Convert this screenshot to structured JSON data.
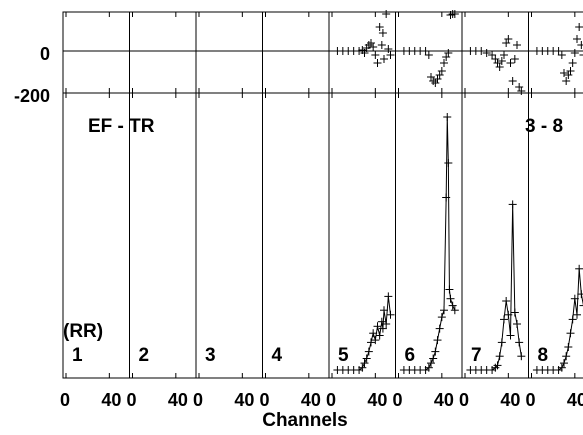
{
  "chart_data": {
    "type": "scatter",
    "labels": {
      "title_left": "EF - TR",
      "title_right": "3 - 8",
      "polarization": "(RR)",
      "xlabel": "Channels"
    },
    "phase_axis": {
      "ticks": [
        "0",
        "-200"
      ]
    },
    "x_ticks": [
      "0",
      "40"
    ],
    "panels": [
      {
        "id": "1",
        "phase": [],
        "amp": []
      },
      {
        "id": "2",
        "phase": [],
        "amp": []
      },
      {
        "id": "3",
        "phase": [],
        "amp": []
      },
      {
        "id": "4",
        "phase": [],
        "amp": []
      },
      {
        "id": "5",
        "phase": [
          [
            5,
            0
          ],
          [
            10,
            0
          ],
          [
            15,
            0
          ],
          [
            20,
            0
          ],
          [
            25,
            0
          ],
          [
            28,
            5
          ],
          [
            30,
            -10
          ],
          [
            32,
            15
          ],
          [
            34,
            30
          ],
          [
            36,
            40
          ],
          [
            38,
            20
          ],
          [
            40,
            -20
          ],
          [
            42,
            -60
          ],
          [
            44,
            120
          ],
          [
            46,
            30
          ],
          [
            47,
            90
          ],
          [
            48,
            -40
          ],
          [
            50,
            200
          ],
          [
            52,
            10
          ],
          [
            54,
            -20
          ]
        ],
        "amp": [
          [
            5,
            0
          ],
          [
            10,
            0
          ],
          [
            15,
            0
          ],
          [
            20,
            0
          ],
          [
            25,
            0
          ],
          [
            28,
            0.1
          ],
          [
            30,
            0.3
          ],
          [
            32,
            0.5
          ],
          [
            34,
            0.8
          ],
          [
            36,
            1.2
          ],
          [
            38,
            1.6
          ],
          [
            40,
            1.3
          ],
          [
            42,
            1.9
          ],
          [
            44,
            1.5
          ],
          [
            46,
            2.1
          ],
          [
            47,
            1.8
          ],
          [
            48,
            2.6
          ],
          [
            50,
            2.0
          ],
          [
            52,
            3.2
          ],
          [
            54,
            2.4
          ]
        ]
      },
      {
        "id": "6",
        "phase": [
          [
            5,
            0
          ],
          [
            10,
            0
          ],
          [
            15,
            0
          ],
          [
            20,
            0
          ],
          [
            25,
            0
          ],
          [
            28,
            -20
          ],
          [
            30,
            -130
          ],
          [
            32,
            -150
          ],
          [
            34,
            -160
          ],
          [
            36,
            -140
          ],
          [
            38,
            -120
          ],
          [
            40,
            -100
          ],
          [
            42,
            -60
          ],
          [
            44,
            -30
          ],
          [
            46,
            -10
          ],
          [
            48,
            180
          ],
          [
            50,
            220
          ],
          [
            52,
            190
          ]
        ],
        "amp": [
          [
            5,
            0
          ],
          [
            10,
            0
          ],
          [
            15,
            0
          ],
          [
            20,
            0
          ],
          [
            25,
            0
          ],
          [
            28,
            0.1
          ],
          [
            30,
            0.3
          ],
          [
            32,
            0.5
          ],
          [
            34,
            0.8
          ],
          [
            36,
            1.3
          ],
          [
            38,
            1.8
          ],
          [
            40,
            2.3
          ],
          [
            42,
            2.6
          ],
          [
            44,
            7.5
          ],
          [
            45,
            11
          ],
          [
            46,
            9
          ],
          [
            47,
            3.5
          ],
          [
            48,
            3.1
          ],
          [
            50,
            2.8
          ],
          [
            52,
            2.6
          ]
        ]
      },
      {
        "id": "7",
        "phase": [
          [
            5,
            0
          ],
          [
            10,
            0
          ],
          [
            15,
            0
          ],
          [
            20,
            -10
          ],
          [
            25,
            -20
          ],
          [
            28,
            -40
          ],
          [
            30,
            -60
          ],
          [
            32,
            -80
          ],
          [
            34,
            -50
          ],
          [
            36,
            -20
          ],
          [
            38,
            40
          ],
          [
            40,
            60
          ],
          [
            42,
            -60
          ],
          [
            44,
            -150
          ],
          [
            46,
            -40
          ],
          [
            48,
            30
          ],
          [
            50,
            -180
          ],
          [
            52,
            -210
          ]
        ],
        "amp": [
          [
            5,
            0
          ],
          [
            10,
            0
          ],
          [
            15,
            0
          ],
          [
            20,
            0
          ],
          [
            25,
            0
          ],
          [
            28,
            0.1
          ],
          [
            30,
            0.2
          ],
          [
            32,
            0.6
          ],
          [
            34,
            1.2
          ],
          [
            36,
            2.2
          ],
          [
            38,
            3.0
          ],
          [
            40,
            2.4
          ],
          [
            42,
            1.5
          ],
          [
            44,
            7.2
          ],
          [
            46,
            2.5
          ],
          [
            48,
            2.0
          ],
          [
            50,
            1.2
          ],
          [
            52,
            0.6
          ]
        ]
      },
      {
        "id": "8",
        "phase": [
          [
            5,
            0
          ],
          [
            10,
            0
          ],
          [
            15,
            0
          ],
          [
            20,
            0
          ],
          [
            25,
            0
          ],
          [
            28,
            -20
          ],
          [
            30,
            -110
          ],
          [
            32,
            -150
          ],
          [
            34,
            -120
          ],
          [
            36,
            -100
          ],
          [
            38,
            -60
          ],
          [
            40,
            -10
          ],
          [
            42,
            60
          ],
          [
            44,
            120
          ],
          [
            46,
            30
          ],
          [
            48,
            -20
          ]
        ],
        "amp": [
          [
            5,
            0
          ],
          [
            10,
            0
          ],
          [
            15,
            0
          ],
          [
            20,
            0
          ],
          [
            25,
            0
          ],
          [
            28,
            0.1
          ],
          [
            30,
            0.3
          ],
          [
            32,
            0.6
          ],
          [
            34,
            1.0
          ],
          [
            36,
            1.6
          ],
          [
            38,
            2.2
          ],
          [
            40,
            3.1
          ],
          [
            42,
            2.4
          ],
          [
            44,
            4.4
          ],
          [
            46,
            3.3
          ],
          [
            48,
            2.8
          ]
        ]
      }
    ]
  }
}
